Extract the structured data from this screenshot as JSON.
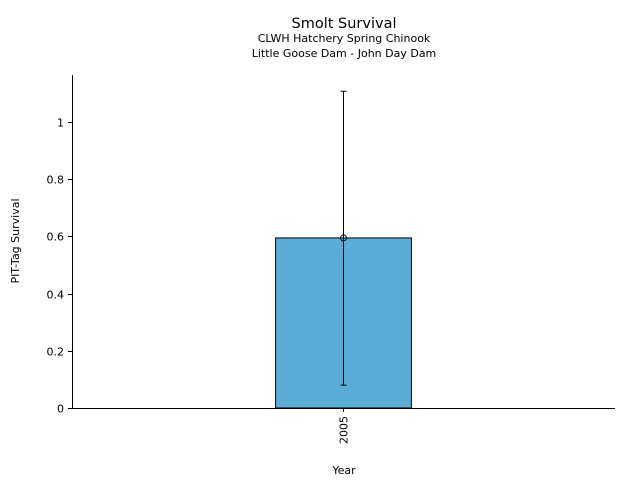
{
  "chart_data": {
    "type": "bar",
    "title": "Smolt Survival",
    "subtitle_lines": [
      "CLWH Hatchery Spring Chinook",
      "Little Goose Dam - John Day Dam"
    ],
    "xlabel": "Year",
    "ylabel": "PIT-Tag Survival",
    "categories": [
      "2005"
    ],
    "values": [
      0.595
    ],
    "error_low": [
      0.08
    ],
    "error_high": [
      1.108
    ],
    "ylim": [
      0,
      1.165
    ],
    "yticks": [
      0,
      0.2,
      0.4,
      0.6,
      0.8,
      1
    ],
    "ytick_labels": [
      "0",
      "0.2",
      "0.4",
      "0.6",
      "0.8",
      "1"
    ],
    "grid": false,
    "bar_color": "#5BACD6"
  }
}
